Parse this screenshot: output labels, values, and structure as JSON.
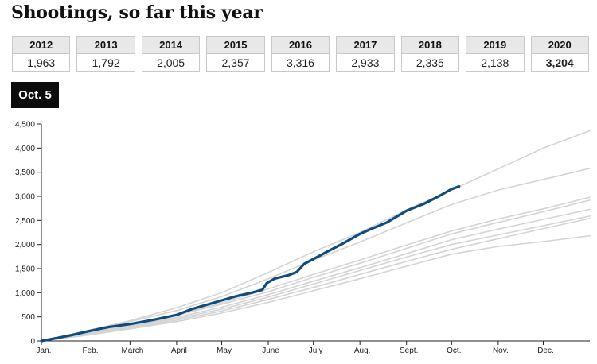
{
  "title": "Shootings, so far this year",
  "date_badge": "Oct. 5",
  "year_table": {
    "years": [
      "2012",
      "2013",
      "2014",
      "2015",
      "2016",
      "2017",
      "2018",
      "2019",
      "2020"
    ],
    "values": [
      "1,963",
      "1,792",
      "2,005",
      "2,357",
      "3,316",
      "2,933",
      "2,335",
      "2,138",
      "3,204"
    ],
    "highlight_index": 8
  },
  "colors": {
    "highlight": "#0f4c7d",
    "past_years": "#d4d4d4",
    "axis": "#222222"
  },
  "chart_data": {
    "type": "line",
    "title": "",
    "xlabel": "",
    "ylabel": "",
    "ylim": [
      0,
      4500
    ],
    "xlim": [
      0,
      365
    ],
    "yticks": [
      0,
      500,
      1000,
      1500,
      2000,
      2500,
      3000,
      3500,
      4000,
      4500
    ],
    "ytick_labels": [
      "0",
      "500",
      "1,000",
      "1,500",
      "2,000",
      "2,500",
      "3,000",
      "3,500",
      "4,000",
      "4,500"
    ],
    "xticks": [
      0,
      31,
      59,
      90,
      120,
      151,
      181,
      212,
      243,
      273,
      304,
      334
    ],
    "xtick_labels": [
      "Jan.",
      "Feb.",
      "March",
      "April",
      "May",
      "June",
      "July",
      "Aug.",
      "Sept.",
      "Oct.",
      "Nov.",
      "Dec."
    ],
    "grid": false,
    "series": [
      {
        "x": [
          0,
          31,
          59,
          90,
          120,
          151,
          181,
          212,
          243,
          273,
          304,
          334,
          365
        ],
        "values": [
          0,
          220,
          420,
          690,
          1000,
          1420,
          1850,
          2250,
          2720,
          3130,
          3570,
          4000,
          4360
        ]
      },
      {
        "x": [
          0,
          31,
          59,
          90,
          120,
          151,
          181,
          212,
          243,
          273,
          304,
          334,
          365
        ],
        "values": [
          0,
          200,
          400,
          630,
          920,
          1290,
          1680,
          2050,
          2450,
          2830,
          3130,
          3350,
          3580
        ]
      },
      {
        "x": [
          0,
          31,
          59,
          90,
          120,
          151,
          181,
          212,
          243,
          273,
          304,
          334,
          365
        ],
        "values": [
          0,
          170,
          340,
          550,
          790,
          1080,
          1380,
          1680,
          1990,
          2280,
          2530,
          2740,
          2980
        ]
      },
      {
        "x": [
          0,
          31,
          59,
          90,
          120,
          151,
          181,
          212,
          243,
          273,
          304,
          334,
          365
        ],
        "values": [
          0,
          160,
          330,
          530,
          760,
          1020,
          1320,
          1610,
          1920,
          2220,
          2460,
          2680,
          2920
        ]
      },
      {
        "x": [
          0,
          31,
          59,
          90,
          120,
          151,
          181,
          212,
          243,
          273,
          304,
          334,
          365
        ],
        "values": [
          0,
          150,
          310,
          490,
          700,
          960,
          1240,
          1520,
          1810,
          2100,
          2320,
          2520,
          2730
        ]
      },
      {
        "x": [
          0,
          31,
          59,
          90,
          120,
          151,
          181,
          212,
          243,
          273,
          304,
          334,
          365
        ],
        "values": [
          0,
          140,
          290,
          460,
          660,
          910,
          1180,
          1460,
          1740,
          2000,
          2200,
          2390,
          2590
        ]
      },
      {
        "x": [
          0,
          31,
          59,
          90,
          120,
          151,
          181,
          212,
          243,
          273,
          304,
          334,
          365
        ],
        "values": [
          0,
          130,
          270,
          430,
          620,
          860,
          1110,
          1380,
          1650,
          1900,
          2120,
          2330,
          2540
        ]
      },
      {
        "x": [
          0,
          31,
          59,
          90,
          120,
          151,
          181,
          212,
          243,
          273,
          304,
          334,
          365
        ],
        "values": [
          0,
          120,
          250,
          400,
          580,
          800,
          1040,
          1290,
          1550,
          1800,
          1960,
          2060,
          2180
        ]
      },
      {
        "highlight": true,
        "x": [
          0,
          10,
          20,
          31,
          45,
          59,
          75,
          90,
          100,
          110,
          120,
          130,
          140,
          147,
          150,
          155,
          160,
          165,
          170,
          175,
          181,
          190,
          200,
          212,
          220,
          230,
          243,
          255,
          265,
          273,
          278
        ],
        "values": [
          0,
          60,
          120,
          200,
          290,
          350,
          440,
          540,
          660,
          750,
          840,
          930,
          1000,
          1060,
          1200,
          1290,
          1330,
          1370,
          1430,
          1600,
          1700,
          1850,
          2010,
          2220,
          2330,
          2460,
          2700,
          2850,
          3010,
          3150,
          3204
        ]
      }
    ]
  }
}
